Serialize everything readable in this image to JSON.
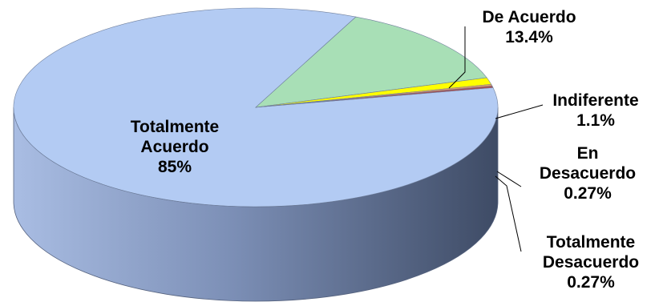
{
  "chart_data": {
    "type": "pie",
    "style": "3d",
    "title": "",
    "series": [
      {
        "name": "Totalmente Acuerdo",
        "label_lines": [
          "Totalmente",
          "Acuerdo"
        ],
        "value_label": "85%",
        "value": 85.0,
        "color": "#b3cbf3"
      },
      {
        "name": "De Acuerdo",
        "label_lines": [
          "De Acuerdo"
        ],
        "value_label": "13.4%",
        "value": 13.4,
        "color": "#a8dfb6"
      },
      {
        "name": "Indiferente",
        "label_lines": [
          "Indiferente"
        ],
        "value_label": "1.1%",
        "value": 1.1,
        "color": "#ffff00"
      },
      {
        "name": "En Desacuerdo",
        "label_lines": [
          "En",
          "Desacuerdo"
        ],
        "value_label": "0.27%",
        "value": 0.27,
        "color": "#e8a060"
      },
      {
        "name": "Totalmente Desacuerdo",
        "label_lines": [
          "Totalmente",
          "Desacuerdo"
        ],
        "value_label": "0.27%",
        "value": 0.27,
        "color": "#b04a4a"
      }
    ],
    "legend": "none"
  }
}
